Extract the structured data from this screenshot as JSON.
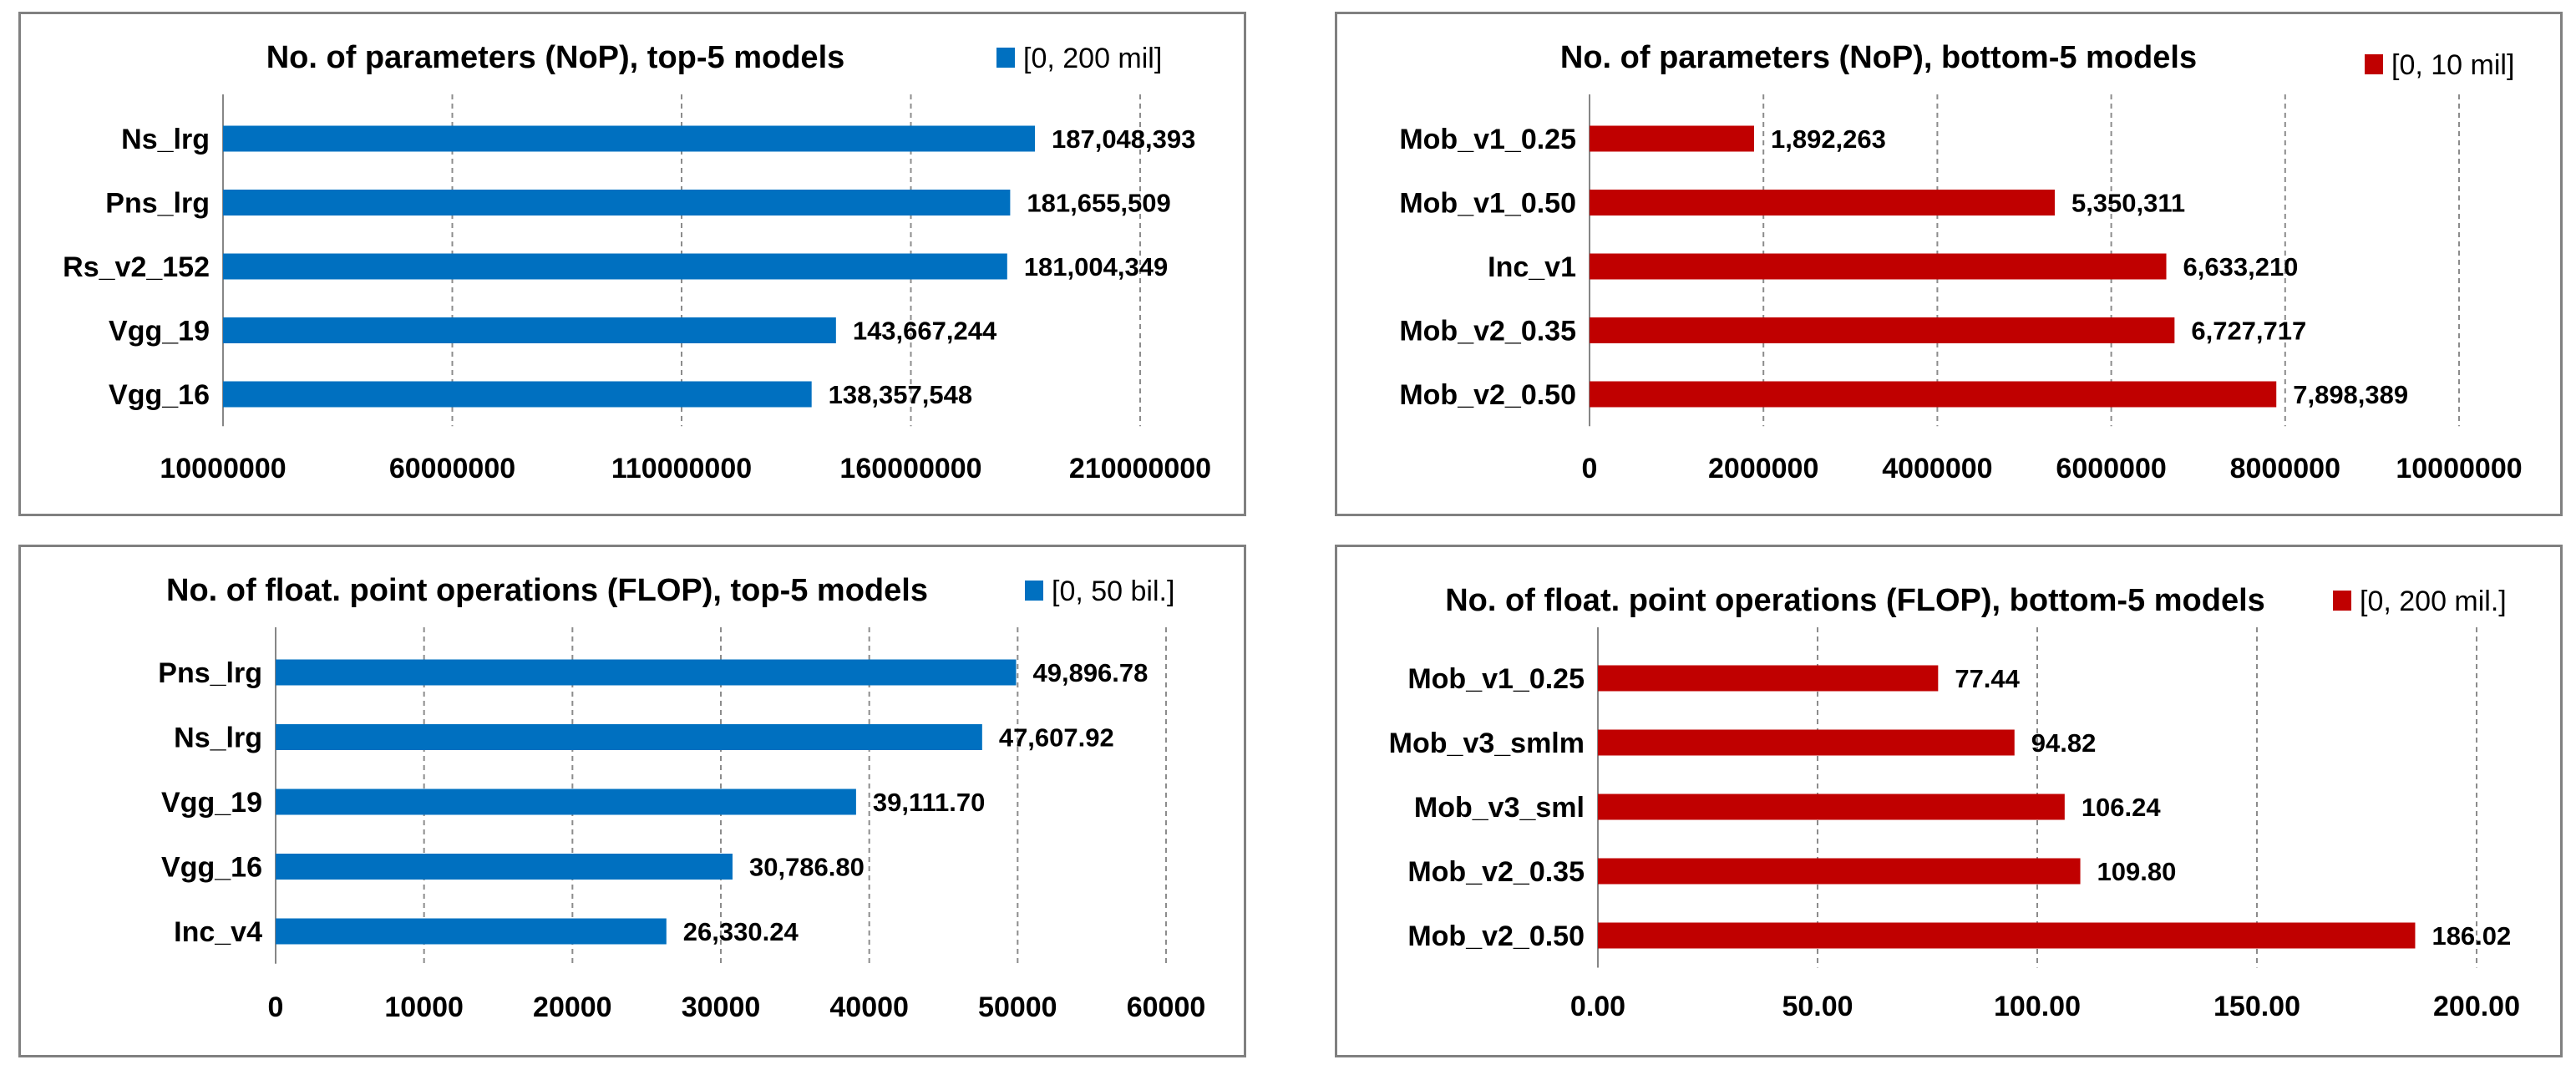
{
  "chart_data": [
    {
      "type": "bar",
      "orientation": "horizontal",
      "title": "No. of parameters (NoP), top-5 models",
      "legend": "[0, 200 mil]",
      "color": "#0070C0",
      "categories": [
        "Ns_lrg",
        "Pns_lrg",
        "Rs_v2_152",
        "Vgg_19",
        "Vgg_16"
      ],
      "values": [
        187048393,
        181655509,
        181004349,
        143667244,
        138357548
      ],
      "value_labels": [
        "187,048,393",
        "181,655,509",
        "181,004,349",
        "143,667,244",
        "138,357,548"
      ],
      "xlim": [
        10000000,
        210000000
      ],
      "ticks": [
        10000000,
        60000000,
        110000000,
        160000000,
        210000000
      ],
      "tick_labels": [
        "10000000",
        "60000000",
        "110000000",
        "160000000",
        "210000000"
      ],
      "grid": "vertical dashed"
    },
    {
      "type": "bar",
      "orientation": "horizontal",
      "title": "No. of parameters (NoP), bottom-5 models",
      "legend": "[0, 10 mil]",
      "color": "#C00000",
      "categories": [
        "Mob_v1_0.25",
        "Mob_v1_0.50",
        "Inc_v1",
        "Mob_v2_0.35",
        "Mob_v2_0.50"
      ],
      "values": [
        1892263,
        5350311,
        6633210,
        6727717,
        7898389
      ],
      "value_labels": [
        "1,892,263",
        "5,350,311",
        "6,633,210",
        "6,727,717",
        "7,898,389"
      ],
      "xlim": [
        0,
        10000000
      ],
      "ticks": [
        0,
        2000000,
        4000000,
        6000000,
        8000000,
        10000000
      ],
      "tick_labels": [
        "0",
        "2000000",
        "4000000",
        "6000000",
        "8000000",
        "10000000"
      ],
      "grid": "vertical dashed"
    },
    {
      "type": "bar",
      "orientation": "horizontal",
      "title": "No. of float. point operations (FLOP), top-5 models",
      "legend": "[0, 50 bil.]",
      "color": "#0070C0",
      "categories": [
        "Pns_lrg",
        "Ns_lrg",
        "Vgg_19",
        "Vgg_16",
        "Inc_v4"
      ],
      "values": [
        49896.78,
        47607.92,
        39111.7,
        30786.8,
        26330.24
      ],
      "value_labels": [
        "49,896.78",
        "47,607.92",
        "39,111.70",
        "30,786.80",
        "26,330.24"
      ],
      "xlim": [
        0,
        60000
      ],
      "ticks": [
        0,
        10000,
        20000,
        30000,
        40000,
        50000,
        60000
      ],
      "tick_labels": [
        "0",
        "10000",
        "20000",
        "30000",
        "40000",
        "50000",
        "60000"
      ],
      "grid": "vertical dashed"
    },
    {
      "type": "bar",
      "orientation": "horizontal",
      "title": "No. of float. point operations (FLOP), bottom-5 models",
      "legend": "[0, 200 mil.]",
      "color": "#C00000",
      "categories": [
        "Mob_v1_0.25",
        "Mob_v3_smlm",
        "Mob_v3_sml",
        "Mob_v2_0.35",
        "Mob_v2_0.50"
      ],
      "values": [
        77.44,
        94.82,
        106.24,
        109.8,
        186.02
      ],
      "value_labels": [
        "77.44",
        "94.82",
        "106.24",
        "109.80",
        "186.02"
      ],
      "xlim": [
        0,
        200
      ],
      "ticks": [
        0,
        50,
        100,
        150,
        200
      ],
      "tick_labels": [
        "0.00",
        "50.00",
        "100.00",
        "150.00",
        "200.00"
      ],
      "grid": "vertical dashed"
    }
  ]
}
